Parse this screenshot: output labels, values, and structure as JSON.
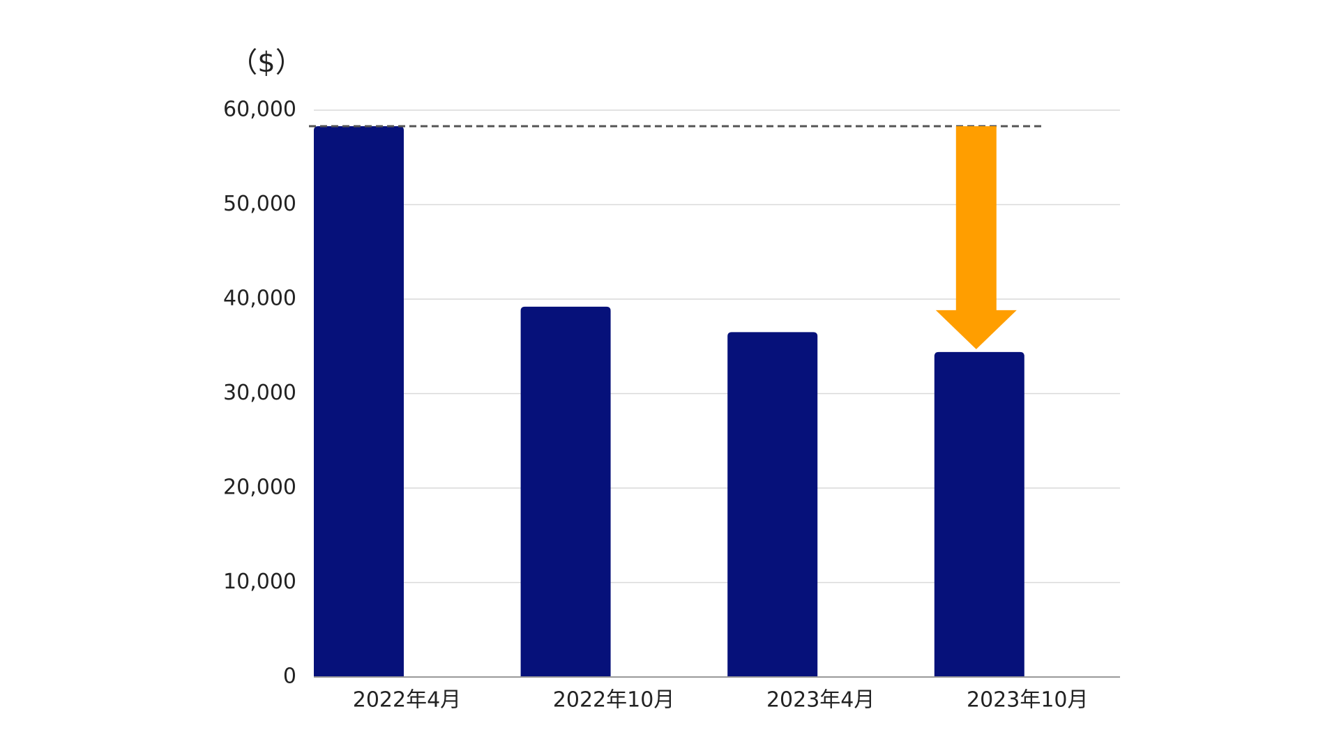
{
  "chart_data": {
    "type": "bar",
    "y_label": "（$）",
    "categories": [
      "2022年4月",
      "2022年10月",
      "2023年4月",
      "2023年10月"
    ],
    "values": [
      58300,
      39200,
      36500,
      34400
    ],
    "color": "#06117a",
    "ylim": [
      0,
      60000
    ],
    "yticks": [
      0,
      {
        "value": 10000,
        "label": "10,000"
      },
      {
        "value": 20000,
        "label": "20,000"
      },
      {
        "value": 30000,
        "label": "30,000"
      },
      {
        "value": 40000,
        "label": "40,000"
      },
      {
        "value": 50000,
        "label": "50,000"
      },
      {
        "value": 60000,
        "label": "60,000"
      }
    ],
    "grid": true,
    "arrow_color": "#ff9e00"
  }
}
